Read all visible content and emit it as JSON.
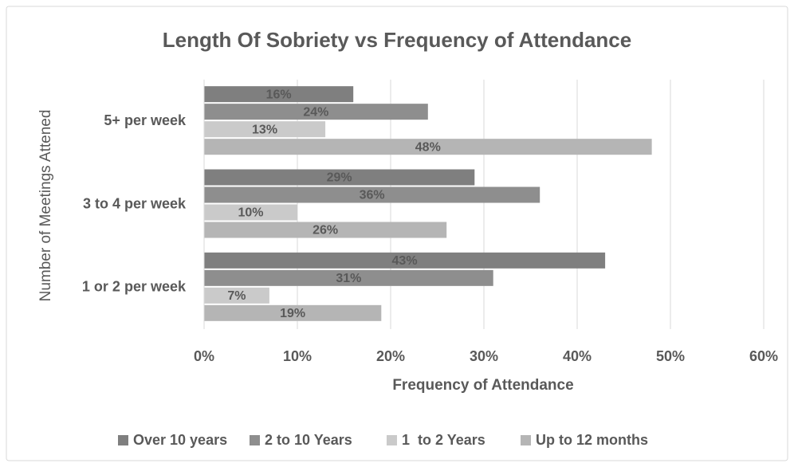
{
  "chart_data": {
    "type": "hbar",
    "title": "Length Of Sobriety vs Frequency of Attendance",
    "x_label": "Frequency of Attendance",
    "y_label": "Number of Meetings Attened",
    "categories": [
      "5+ per week",
      "3 to 4 per week",
      "1 or 2 per week"
    ],
    "series": [
      {
        "name": "Over 10 years",
        "color": "#7f7f7f",
        "values": [
          16,
          29,
          43
        ],
        "value_labels": [
          "16%",
          "29%",
          "43%"
        ]
      },
      {
        "name": "2 to 10 Years",
        "color": "#8e8e8e",
        "values": [
          24,
          36,
          31
        ],
        "value_labels": [
          "24%",
          "36%",
          "31%"
        ]
      },
      {
        "name": "1  to 2 Years",
        "color": "#cacaca",
        "values": [
          13,
          10,
          7
        ],
        "value_labels": [
          "13%",
          "10%",
          "7%"
        ]
      },
      {
        "name": "Up to 12 months",
        "color": "#b5b5b5",
        "values": [
          48,
          26,
          19
        ],
        "value_labels": [
          "48%",
          "26%",
          "19%"
        ]
      }
    ],
    "xlim": [
      0,
      60
    ],
    "xticks": [
      {
        "value": 0,
        "label": "0%"
      },
      {
        "value": 10,
        "label": "10%"
      },
      {
        "value": 20,
        "label": "20%"
      },
      {
        "value": 30,
        "label": "30%"
      },
      {
        "value": 40,
        "label": "40%"
      },
      {
        "value": 50,
        "label": "50%"
      },
      {
        "value": 60,
        "label": "60%"
      }
    ],
    "grid": true,
    "legend": "bottom"
  }
}
